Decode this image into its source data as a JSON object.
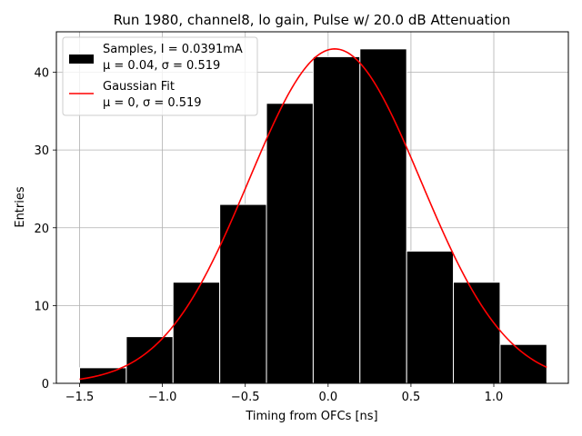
{
  "chart_data": {
    "type": "bar",
    "title": "Run 1980, channel8, lo gain, Pulse w/ 20.0 dB Attenuation",
    "xlabel": "Timing from OFCs [ns]",
    "ylabel": "Entries",
    "xlim": [
      -1.64,
      1.45
    ],
    "ylim": [
      0,
      45.2
    ],
    "xticks": [
      -1.5,
      -1.0,
      -0.5,
      0.0,
      0.5,
      1.0
    ],
    "xtick_labels": [
      "−1.5",
      "−1.0",
      "−0.5",
      "0.0",
      "0.5",
      "1.0"
    ],
    "yticks": [
      0,
      10,
      20,
      30,
      40
    ],
    "ytick_labels": [
      "0",
      "10",
      "20",
      "30",
      "40"
    ],
    "grid": true,
    "legend_position": "top-left",
    "series": [
      {
        "name": "Samples, I = 0.0391mA",
        "sublabel": "μ = 0.04, σ = 0.519",
        "kind": "histogram",
        "color": "#000000",
        "bin_edges": [
          -1.5,
          -1.218,
          -0.936,
          -0.654,
          -0.372,
          -0.09,
          0.192,
          0.474,
          0.756,
          1.038,
          1.32
        ],
        "counts": [
          2,
          6,
          13,
          23,
          36,
          42,
          43,
          17,
          13,
          5
        ]
      },
      {
        "name": "Gaussian Fit",
        "sublabel": "μ = 0, σ = 0.519",
        "kind": "line",
        "color": "#ff0000",
        "x_range": [
          -1.5,
          1.32
        ],
        "amplitude": 43.0,
        "mean": 0.04,
        "sigma": 0.519
      }
    ]
  }
}
